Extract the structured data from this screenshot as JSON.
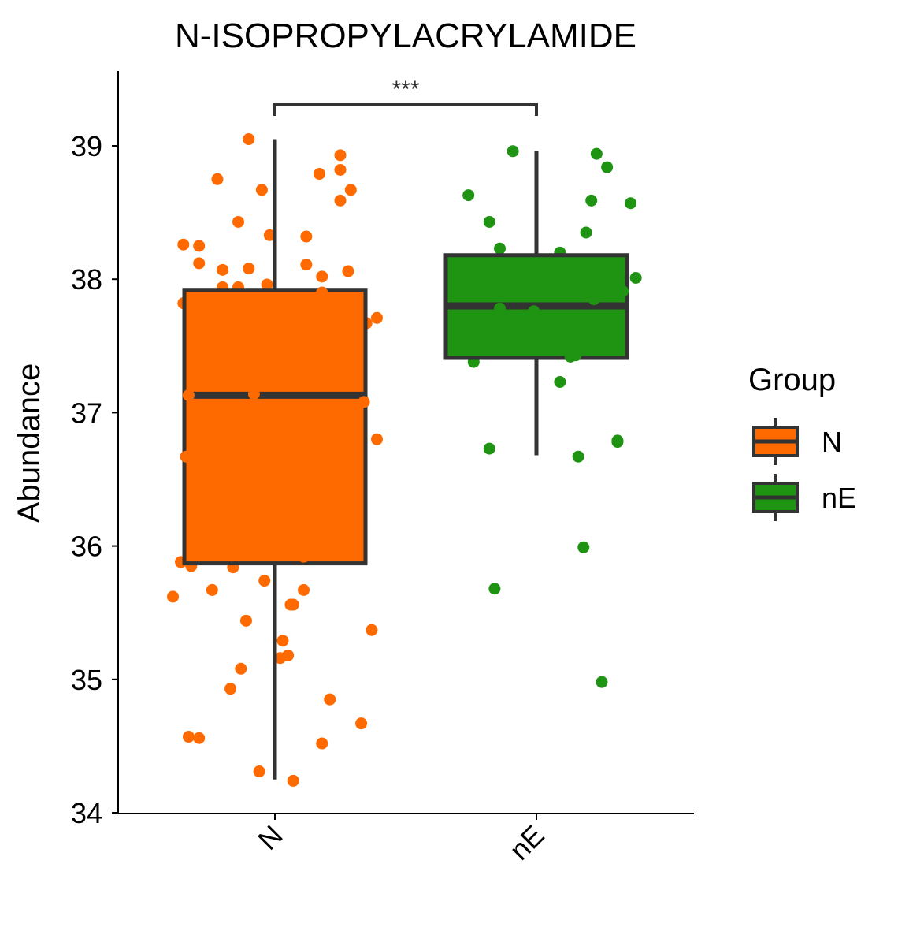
{
  "chart_data": {
    "type": "box",
    "title": "N-ISOPROPYLACRYLAMIDE",
    "xlabel": "",
    "ylabel": "Abundance",
    "ylim": [
      34,
      39.5
    ],
    "yticks": [
      34,
      35,
      36,
      37,
      38,
      39
    ],
    "categories": [
      "N",
      "nE"
    ],
    "legend": {
      "title": "Group",
      "position": "right",
      "entries": [
        {
          "label": "N",
          "color": "#FF6A00"
        },
        {
          "label": "nE",
          "color": "#1F9312"
        }
      ]
    },
    "significance": {
      "groups": [
        "N",
        "nE"
      ],
      "label": "***"
    },
    "boxes": [
      {
        "group": "N",
        "color": "#FF6A00",
        "whisker_low": 34.25,
        "q1": 35.87,
        "median": 37.13,
        "q3": 37.92,
        "whisker_high": 39.05
      },
      {
        "group": "nE",
        "color": "#1F9312",
        "whisker_low": 36.68,
        "q1": 37.41,
        "median": 37.8,
        "q3": 38.18,
        "whisker_high": 38.96
      }
    ],
    "series": [
      {
        "group": "N",
        "color": "#FF6A00",
        "points": [
          [
            0.9,
            39.05
          ],
          [
            1.25,
            38.93
          ],
          [
            1.25,
            38.82
          ],
          [
            1.17,
            38.79
          ],
          [
            0.78,
            38.75
          ],
          [
            0.95,
            38.67
          ],
          [
            1.29,
            38.67
          ],
          [
            1.25,
            38.59
          ],
          [
            0.86,
            38.43
          ],
          [
            0.98,
            38.33
          ],
          [
            1.12,
            38.32
          ],
          [
            0.65,
            38.26
          ],
          [
            0.71,
            38.25
          ],
          [
            0.71,
            38.12
          ],
          [
            1.12,
            38.11
          ],
          [
            0.8,
            38.07
          ],
          [
            0.9,
            38.08
          ],
          [
            1.28,
            38.06
          ],
          [
            1.18,
            38.02
          ],
          [
            0.97,
            37.96
          ],
          [
            0.8,
            37.94
          ],
          [
            0.86,
            37.94
          ],
          [
            1.18,
            37.9
          ],
          [
            0.65,
            37.82
          ],
          [
            1.39,
            37.71
          ],
          [
            1.35,
            37.67
          ],
          [
            0.67,
            37.13
          ],
          [
            0.92,
            37.14
          ],
          [
            1.34,
            37.08
          ],
          [
            1.39,
            36.8
          ],
          [
            0.66,
            36.67
          ],
          [
            0.64,
            35.88
          ],
          [
            0.68,
            35.85
          ],
          [
            0.84,
            35.84
          ],
          [
            1.11,
            35.92
          ],
          [
            0.96,
            35.74
          ],
          [
            0.76,
            35.67
          ],
          [
            1.11,
            35.67
          ],
          [
            0.61,
            35.62
          ],
          [
            1.06,
            35.56
          ],
          [
            1.07,
            35.56
          ],
          [
            0.89,
            35.44
          ],
          [
            1.37,
            35.37
          ],
          [
            1.03,
            35.29
          ],
          [
            1.02,
            35.16
          ],
          [
            1.05,
            35.18
          ],
          [
            0.87,
            35.08
          ],
          [
            0.83,
            34.93
          ],
          [
            1.21,
            34.85
          ],
          [
            1.33,
            34.67
          ],
          [
            0.67,
            34.57
          ],
          [
            0.71,
            34.56
          ],
          [
            1.18,
            34.52
          ],
          [
            0.94,
            34.31
          ],
          [
            1.07,
            34.24
          ]
        ]
      },
      {
        "group": "nE",
        "color": "#1F9312",
        "points": [
          [
            1.91,
            38.96
          ],
          [
            2.23,
            38.94
          ],
          [
            2.27,
            38.84
          ],
          [
            1.74,
            38.63
          ],
          [
            2.21,
            38.59
          ],
          [
            2.36,
            38.57
          ],
          [
            1.82,
            38.43
          ],
          [
            2.19,
            38.35
          ],
          [
            1.86,
            38.23
          ],
          [
            2.09,
            38.2
          ],
          [
            2.38,
            38.01
          ],
          [
            2.33,
            37.91
          ],
          [
            2.22,
            37.85
          ],
          [
            1.86,
            37.78
          ],
          [
            1.99,
            37.76
          ],
          [
            2.13,
            37.42
          ],
          [
            2.15,
            37.43
          ],
          [
            1.76,
            37.38
          ],
          [
            2.09,
            37.23
          ],
          [
            2.31,
            36.79
          ],
          [
            2.31,
            36.78
          ],
          [
            1.82,
            36.73
          ],
          [
            2.16,
            36.67
          ],
          [
            2.18,
            35.99
          ],
          [
            1.84,
            35.68
          ],
          [
            2.25,
            34.98
          ]
        ]
      }
    ]
  }
}
